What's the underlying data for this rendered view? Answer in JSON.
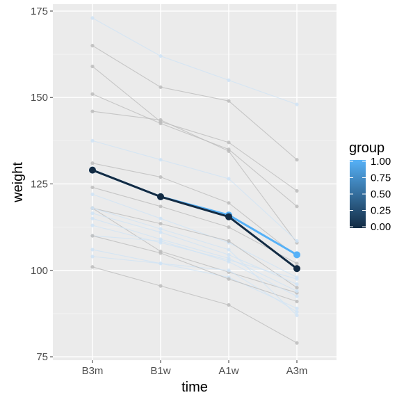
{
  "chart_data": {
    "type": "line",
    "xlabel": "time",
    "ylabel": "weight",
    "categories": [
      "B3m",
      "B1w",
      "A1w",
      "A3m"
    ],
    "ylim": [
      74,
      177
    ],
    "y_ticks": [
      75,
      100,
      125,
      150,
      175
    ],
    "grid": true,
    "legend": {
      "title": "group",
      "placement": "right",
      "type": "colorbar",
      "ticks": [
        "1.00",
        "0.75",
        "0.50",
        "0.25",
        "0.00"
      ],
      "low_color": "#132B43",
      "high_color": "#56B1F7"
    },
    "individual_series": [
      {
        "values": [
          173,
          162,
          155,
          148
        ],
        "group": 1
      },
      {
        "values": [
          165,
          153,
          149,
          132
        ],
        "group": 0
      },
      {
        "values": [
          159,
          143,
          137,
          123
        ],
        "group": 0
      },
      {
        "values": [
          151,
          142.5,
          135,
          118.5
        ],
        "group": 0
      },
      {
        "values": [
          146,
          143.5,
          134.5,
          108
        ],
        "group": 0
      },
      {
        "values": [
          137.5,
          132,
          126.5,
          108.5
        ],
        "group": 1
      },
      {
        "values": [
          131,
          127,
          119.5,
          104
        ],
        "group": 0
      },
      {
        "values": [
          124,
          118.5,
          112.5,
          102
        ],
        "group": 0
      },
      {
        "values": [
          122,
          115,
          108,
          98
        ],
        "group": 1
      },
      {
        "values": [
          118,
          113.5,
          108.5,
          95
        ],
        "group": 0
      },
      {
        "values": [
          118,
          105.5,
          99.5,
          93.5
        ],
        "group": 0
      },
      {
        "values": [
          116.5,
          111,
          104.5,
          96
        ],
        "group": 1
      },
      {
        "values": [
          115,
          109,
          103.5,
          94
        ],
        "group": 1
      },
      {
        "values": [
          110,
          108.5,
          102.5,
          92.5
        ],
        "group": 1
      },
      {
        "values": [
          106,
          102,
          98,
          89
        ],
        "group": 1
      },
      {
        "values": [
          104,
          102,
          100,
          88
        ],
        "group": 1
      },
      {
        "values": [
          101,
          95.5,
          90,
          79
        ],
        "group": 0
      },
      {
        "values": [
          110,
          105,
          97.5,
          91
        ],
        "group": 0
      },
      {
        "values": [
          113,
          108,
          103,
          97.5
        ],
        "group": 1
      },
      {
        "values": [
          118,
          112,
          106,
          87
        ],
        "group": 1
      }
    ],
    "series": [
      {
        "group": 1,
        "color": "#56B1F7",
        "values": [
          129,
          121.3,
          116,
          104.5
        ]
      },
      {
        "group": 0,
        "color": "#132B43",
        "values": [
          129,
          121.3,
          115.5,
          100.5
        ]
      }
    ],
    "colors": {
      "panel": "#EBEBEB",
      "grid_major": "#FFFFFF",
      "grid_minor": "#F5F5F5",
      "spaghetti": "#BDBDBD",
      "spaghetti_group1": "#CFE3F5"
    }
  }
}
